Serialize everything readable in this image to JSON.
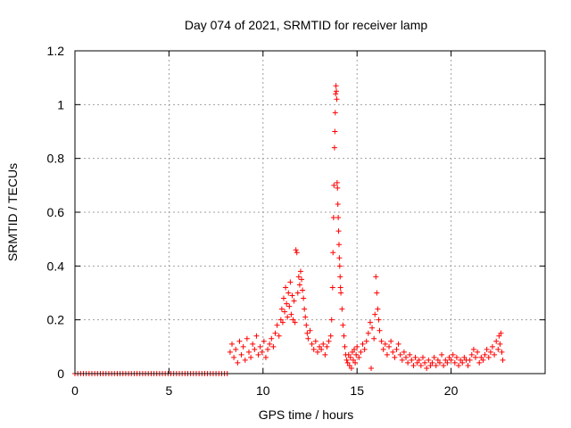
{
  "chart_data": {
    "type": "scatter",
    "title": "Day 074 of 2021, SRMTID for receiver lamp",
    "xlabel": "GPS time / hours",
    "ylabel": "SRMTID / TECUs",
    "xlim": [
      0,
      25
    ],
    "ylim": [
      0,
      1.2
    ],
    "grid": true,
    "marker": "+",
    "color": "#ff0000",
    "x_ticks": [
      0,
      5,
      10,
      15,
      20
    ],
    "x_tick_labels": [
      "0",
      "5",
      "10",
      "15",
      "20"
    ],
    "y_ticks": [
      0,
      0.2,
      0.4,
      0.6,
      0.8,
      1.0,
      1.2
    ],
    "y_tick_labels": [
      "0",
      "0.2",
      "0.4",
      "0.6",
      "0.8",
      "1",
      "1.2"
    ],
    "series": [
      {
        "name": "SRMTID",
        "points": [
          [
            0.0,
            0
          ],
          [
            0.15,
            0
          ],
          [
            0.3,
            0
          ],
          [
            0.45,
            0
          ],
          [
            0.6,
            0
          ],
          [
            0.75,
            0
          ],
          [
            0.9,
            0
          ],
          [
            1.05,
            0
          ],
          [
            1.2,
            0
          ],
          [
            1.35,
            0
          ],
          [
            1.5,
            0
          ],
          [
            1.65,
            0
          ],
          [
            1.8,
            0
          ],
          [
            1.95,
            0
          ],
          [
            2.1,
            0
          ],
          [
            2.25,
            0
          ],
          [
            2.4,
            0
          ],
          [
            2.55,
            0
          ],
          [
            2.7,
            0
          ],
          [
            2.85,
            0
          ],
          [
            3.0,
            0
          ],
          [
            3.15,
            0
          ],
          [
            3.3,
            0
          ],
          [
            3.45,
            0
          ],
          [
            3.6,
            0
          ],
          [
            3.75,
            0
          ],
          [
            3.9,
            0
          ],
          [
            4.05,
            0
          ],
          [
            4.2,
            0
          ],
          [
            4.35,
            0
          ],
          [
            4.5,
            0
          ],
          [
            4.65,
            0
          ],
          [
            4.8,
            0
          ],
          [
            4.95,
            0
          ],
          [
            5.1,
            0
          ],
          [
            5.25,
            0
          ],
          [
            5.4,
            0
          ],
          [
            5.55,
            0
          ],
          [
            5.7,
            0
          ],
          [
            5.85,
            0
          ],
          [
            6.0,
            0
          ],
          [
            6.15,
            0
          ],
          [
            6.3,
            0
          ],
          [
            6.45,
            0
          ],
          [
            6.6,
            0
          ],
          [
            6.75,
            0
          ],
          [
            6.9,
            0
          ],
          [
            7.05,
            0
          ],
          [
            7.2,
            0
          ],
          [
            7.35,
            0
          ],
          [
            7.5,
            0
          ],
          [
            7.65,
            0
          ],
          [
            7.8,
            0
          ],
          [
            7.95,
            0
          ],
          [
            8.1,
            0
          ],
          [
            8.25,
            0.08
          ],
          [
            8.35,
            0.11
          ],
          [
            8.45,
            0.06
          ],
          [
            8.55,
            0.09
          ],
          [
            8.65,
            0.04
          ],
          [
            8.75,
            0.12
          ],
          [
            8.85,
            0.07
          ],
          [
            8.95,
            0.1
          ],
          [
            9.05,
            0.05
          ],
          [
            9.15,
            0.13
          ],
          [
            9.25,
            0.08
          ],
          [
            9.35,
            0.06
          ],
          [
            9.45,
            0.11
          ],
          [
            9.55,
            0.09
          ],
          [
            9.65,
            0.14
          ],
          [
            9.75,
            0.07
          ],
          [
            9.85,
            0.1
          ],
          [
            9.95,
            0.08
          ],
          [
            10.05,
            0.12
          ],
          [
            10.15,
            0.06
          ],
          [
            10.25,
            0.09
          ],
          [
            10.35,
            0.11
          ],
          [
            10.45,
            0.13
          ],
          [
            10.55,
            0.1
          ],
          [
            10.65,
            0.15
          ],
          [
            10.75,
            0.18
          ],
          [
            10.85,
            0.14
          ],
          [
            10.95,
            0.2
          ],
          [
            11.0,
            0.24
          ],
          [
            11.05,
            0.19
          ],
          [
            11.1,
            0.28
          ],
          [
            11.15,
            0.23
          ],
          [
            11.2,
            0.32
          ],
          [
            11.25,
            0.26
          ],
          [
            11.3,
            0.21
          ],
          [
            11.35,
            0.3
          ],
          [
            11.4,
            0.25
          ],
          [
            11.45,
            0.34
          ],
          [
            11.5,
            0.22
          ],
          [
            11.55,
            0.29
          ],
          [
            11.6,
            0.2
          ],
          [
            11.65,
            0.27
          ],
          [
            11.7,
            0.19
          ],
          [
            11.75,
            0.46
          ],
          [
            11.8,
            0.45
          ],
          [
            11.85,
            0.3
          ],
          [
            11.9,
            0.36
          ],
          [
            11.95,
            0.33
          ],
          [
            12.0,
            0.38
          ],
          [
            12.05,
            0.35
          ],
          [
            12.1,
            0.31
          ],
          [
            12.15,
            0.28
          ],
          [
            12.2,
            0.24
          ],
          [
            12.25,
            0.21
          ],
          [
            12.3,
            0.18
          ],
          [
            12.35,
            0.15
          ],
          [
            12.4,
            0.13
          ],
          [
            12.5,
            0.16
          ],
          [
            12.6,
            0.11
          ],
          [
            12.7,
            0.09
          ],
          [
            12.8,
            0.12
          ],
          [
            12.9,
            0.08
          ],
          [
            13.0,
            0.1
          ],
          [
            13.1,
            0.09
          ],
          [
            13.2,
            0.11
          ],
          [
            13.3,
            0.07
          ],
          [
            13.4,
            0.1
          ],
          [
            13.5,
            0.12
          ],
          [
            13.6,
            0.14
          ],
          [
            13.65,
            0.2
          ],
          [
            13.7,
            0.32
          ],
          [
            13.72,
            0.45
          ],
          [
            13.75,
            0.58
          ],
          [
            13.77,
            0.7
          ],
          [
            13.8,
            0.84
          ],
          [
            13.82,
            0.9
          ],
          [
            13.84,
            0.97
          ],
          [
            13.86,
            1.04
          ],
          [
            13.88,
            1.07
          ],
          [
            13.9,
            1.05
          ],
          [
            13.92,
            1.02
          ],
          [
            13.94,
            0.71
          ],
          [
            13.96,
            0.69
          ],
          [
            13.98,
            0.63
          ],
          [
            14.0,
            0.58
          ],
          [
            14.02,
            0.53
          ],
          [
            14.04,
            0.48
          ],
          [
            14.06,
            0.43
          ],
          [
            14.08,
            0.4
          ],
          [
            14.1,
            0.36
          ],
          [
            14.12,
            0.32
          ],
          [
            14.14,
            0.3
          ],
          [
            14.2,
            0.24
          ],
          [
            14.25,
            0.18
          ],
          [
            14.3,
            0.14
          ],
          [
            14.35,
            0.1
          ],
          [
            14.4,
            0.07
          ],
          [
            14.45,
            0.05
          ],
          [
            14.5,
            0.04
          ],
          [
            14.55,
            0.07
          ],
          [
            14.6,
            0.03
          ],
          [
            14.65,
            0.06
          ],
          [
            14.7,
            0.02
          ],
          [
            14.75,
            0.08
          ],
          [
            14.8,
            0.05
          ],
          [
            14.85,
            0.09
          ],
          [
            14.9,
            0.04
          ],
          [
            14.95,
            0.07
          ],
          [
            15.0,
            0.1
          ],
          [
            15.1,
            0.06
          ],
          [
            15.2,
            0.08
          ],
          [
            15.3,
            0.11
          ],
          [
            15.4,
            0.09
          ],
          [
            15.5,
            0.12
          ],
          [
            15.6,
            0.15
          ],
          [
            15.7,
            0.19
          ],
          [
            15.75,
            0.02
          ],
          [
            15.8,
            0.17
          ],
          [
            15.9,
            0.13
          ],
          [
            15.95,
            0.22
          ],
          [
            16.0,
            0.36
          ],
          [
            16.05,
            0.3
          ],
          [
            16.1,
            0.24
          ],
          [
            16.15,
            0.2
          ],
          [
            16.2,
            0.16
          ],
          [
            16.3,
            0.12
          ],
          [
            16.4,
            0.09
          ],
          [
            16.5,
            0.11
          ],
          [
            16.6,
            0.07
          ],
          [
            16.7,
            0.1
          ],
          [
            16.8,
            0.12
          ],
          [
            16.9,
            0.08
          ],
          [
            17.0,
            0.06
          ],
          [
            17.1,
            0.09
          ],
          [
            17.2,
            0.11
          ],
          [
            17.3,
            0.07
          ],
          [
            17.4,
            0.05
          ],
          [
            17.5,
            0.08
          ],
          [
            17.6,
            0.06
          ],
          [
            17.7,
            0.04
          ],
          [
            17.8,
            0.07
          ],
          [
            17.9,
            0.05
          ],
          [
            18.0,
            0.03
          ],
          [
            18.1,
            0.06
          ],
          [
            18.2,
            0.04
          ],
          [
            18.3,
            0.05
          ],
          [
            18.4,
            0.03
          ],
          [
            18.5,
            0.06
          ],
          [
            18.6,
            0.04
          ],
          [
            18.7,
            0.02
          ],
          [
            18.8,
            0.05
          ],
          [
            18.9,
            0.03
          ],
          [
            19.0,
            0.04
          ],
          [
            19.1,
            0.06
          ],
          [
            19.2,
            0.03
          ],
          [
            19.3,
            0.05
          ],
          [
            19.4,
            0.04
          ],
          [
            19.5,
            0.07
          ],
          [
            19.6,
            0.03
          ],
          [
            19.7,
            0.05
          ],
          [
            19.8,
            0.04
          ],
          [
            19.9,
            0.06
          ],
          [
            20.0,
            0.05
          ],
          [
            20.1,
            0.07
          ],
          [
            20.2,
            0.04
          ],
          [
            20.3,
            0.06
          ],
          [
            20.4,
            0.03
          ],
          [
            20.5,
            0.05
          ],
          [
            20.6,
            0.04
          ],
          [
            20.7,
            0.06
          ],
          [
            20.8,
            0.05
          ],
          [
            20.9,
            0.03
          ],
          [
            21.0,
            0.05
          ],
          [
            21.1,
            0.07
          ],
          [
            21.2,
            0.09
          ],
          [
            21.3,
            0.06
          ],
          [
            21.4,
            0.08
          ],
          [
            21.5,
            0.04
          ],
          [
            21.6,
            0.06
          ],
          [
            21.7,
            0.05
          ],
          [
            21.8,
            0.07
          ],
          [
            21.9,
            0.09
          ],
          [
            22.0,
            0.06
          ],
          [
            22.1,
            0.08
          ],
          [
            22.2,
            0.1
          ],
          [
            22.3,
            0.07
          ],
          [
            22.4,
            0.12
          ],
          [
            22.5,
            0.09
          ],
          [
            22.55,
            0.14
          ],
          [
            22.6,
            0.11
          ],
          [
            22.65,
            0.15
          ],
          [
            22.7,
            0.08
          ],
          [
            22.75,
            0.05
          ]
        ]
      }
    ]
  }
}
